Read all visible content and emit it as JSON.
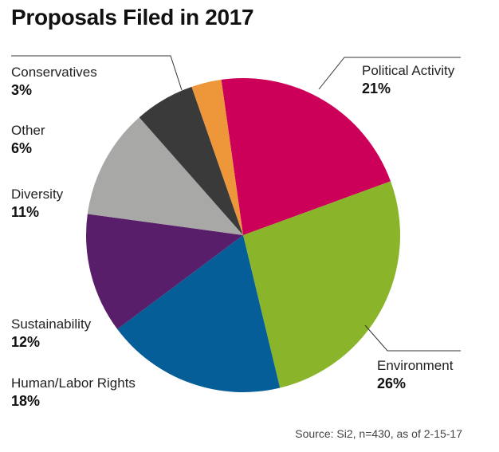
{
  "title": "Proposals Filed in 2017",
  "source": "Source: Si2, n=430, as of 2-15-17",
  "chart_data": {
    "type": "pie",
    "title": "Proposals Filed in 2017",
    "slices": [
      {
        "label": "Political Activity",
        "value": 21,
        "pct_label": "21%",
        "color": "#CC0058"
      },
      {
        "label": "Environment",
        "value": 26,
        "pct_label": "26%",
        "color": "#8AB42A"
      },
      {
        "label": "Human/Labor Rights",
        "value": 18,
        "pct_label": "18%",
        "color": "#065E99"
      },
      {
        "label": "Sustainability",
        "value": 12,
        "pct_label": "12%",
        "color": "#591E69"
      },
      {
        "label": "Diversity",
        "value": 11,
        "pct_label": "11%",
        "color": "#A8A9A6"
      },
      {
        "label": "Other",
        "value": 6,
        "pct_label": "6%",
        "color": "#3A3A3A"
      },
      {
        "label": "Conservatives",
        "value": 3,
        "pct_label": "3%",
        "color": "#EE963A"
      }
    ]
  }
}
